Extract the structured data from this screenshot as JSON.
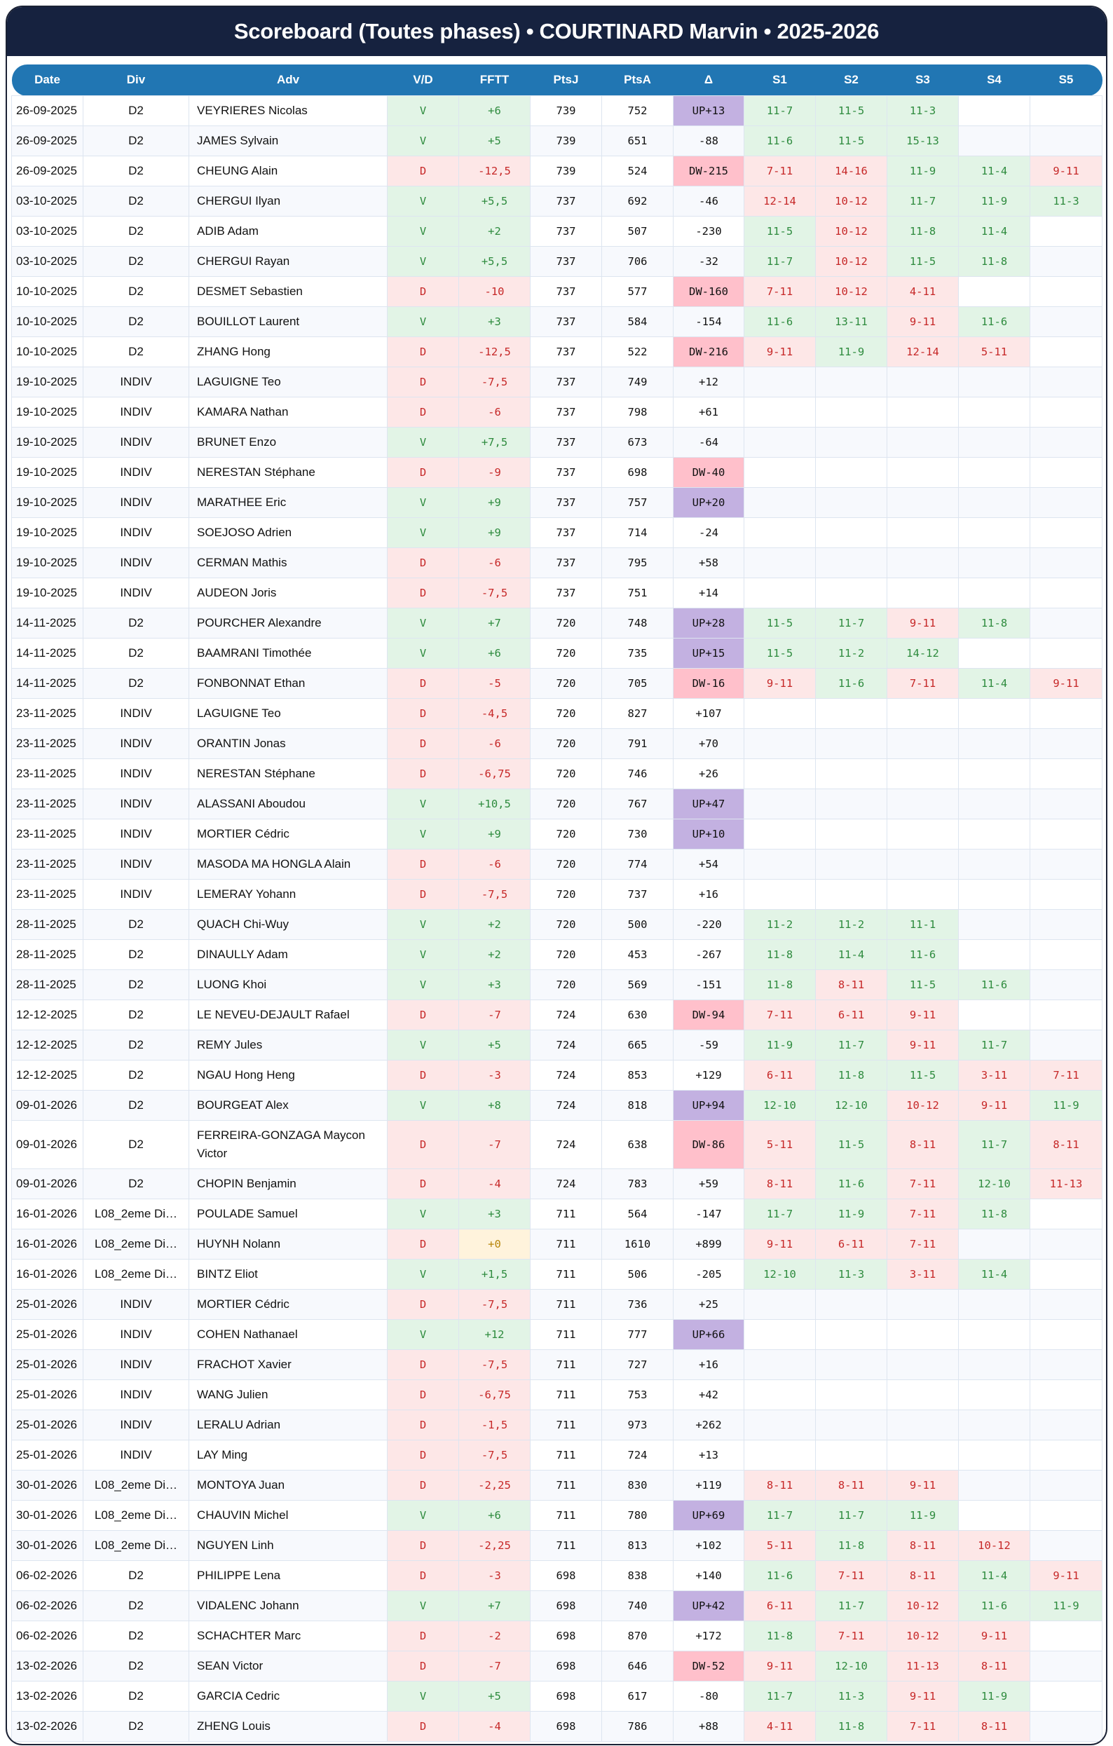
{
  "title": "Scoreboard (Toutes phases) • COURTINARD Marvin • 2025-2026",
  "colors": {
    "title_bg": "#16223f",
    "header_bg": "#2176b3",
    "win_bg": "#e2f4e6",
    "win_text": "#2e8b3e",
    "loss_bg": "#fde7e7",
    "loss_text": "#c62828",
    "up_bg": "#c3b1e1",
    "dw_bg": "#ffc0cb",
    "neutral_bg": "#fff3dc"
  },
  "columns": [
    "Date",
    "Div",
    "Adv",
    "V/D",
    "FFTT",
    "PtsJ",
    "PtsA",
    "Δ",
    "S1",
    "S2",
    "S3",
    "S4",
    "S5"
  ],
  "rows": [
    [
      "26-09-2025",
      "D2",
      "VEYRIERES Nicolas",
      "V",
      "+6",
      "739",
      "752",
      "UP+13",
      "11-7",
      "11-5",
      "11-3",
      "",
      ""
    ],
    [
      "26-09-2025",
      "D2",
      "JAMES Sylvain",
      "V",
      "+5",
      "739",
      "651",
      "-88",
      "11-6",
      "11-5",
      "15-13",
      "",
      ""
    ],
    [
      "26-09-2025",
      "D2",
      "CHEUNG Alain",
      "D",
      "-12,5",
      "739",
      "524",
      "DW-215",
      "7-11",
      "14-16",
      "11-9",
      "11-4",
      "9-11"
    ],
    [
      "03-10-2025",
      "D2",
      "CHERGUI Ilyan",
      "V",
      "+5,5",
      "737",
      "692",
      "-46",
      "12-14",
      "10-12",
      "11-7",
      "11-9",
      "11-3"
    ],
    [
      "03-10-2025",
      "D2",
      "ADIB Adam",
      "V",
      "+2",
      "737",
      "507",
      "-230",
      "11-5",
      "10-12",
      "11-8",
      "11-4",
      ""
    ],
    [
      "03-10-2025",
      "D2",
      "CHERGUI Rayan",
      "V",
      "+5,5",
      "737",
      "706",
      "-32",
      "11-7",
      "10-12",
      "11-5",
      "11-8",
      ""
    ],
    [
      "10-10-2025",
      "D2",
      "DESMET Sebastien",
      "D",
      "-10",
      "737",
      "577",
      "DW-160",
      "7-11",
      "10-12",
      "4-11",
      "",
      ""
    ],
    [
      "10-10-2025",
      "D2",
      "BOUILLOT Laurent",
      "V",
      "+3",
      "737",
      "584",
      "-154",
      "11-6",
      "13-11",
      "9-11",
      "11-6",
      ""
    ],
    [
      "10-10-2025",
      "D2",
      "ZHANG Hong",
      "D",
      "-12,5",
      "737",
      "522",
      "DW-216",
      "9-11",
      "11-9",
      "12-14",
      "5-11",
      ""
    ],
    [
      "19-10-2025",
      "INDIV",
      "LAGUIGNE Teo",
      "D",
      "-7,5",
      "737",
      "749",
      "+12",
      "",
      "",
      "",
      "",
      ""
    ],
    [
      "19-10-2025",
      "INDIV",
      "KAMARA Nathan",
      "D",
      "-6",
      "737",
      "798",
      "+61",
      "",
      "",
      "",
      "",
      ""
    ],
    [
      "19-10-2025",
      "INDIV",
      "BRUNET Enzo",
      "V",
      "+7,5",
      "737",
      "673",
      "-64",
      "",
      "",
      "",
      "",
      ""
    ],
    [
      "19-10-2025",
      "INDIV",
      "NERESTAN Stéphane",
      "D",
      "-9",
      "737",
      "698",
      "DW-40",
      "",
      "",
      "",
      "",
      ""
    ],
    [
      "19-10-2025",
      "INDIV",
      "MARATHEE Eric",
      "V",
      "+9",
      "737",
      "757",
      "UP+20",
      "",
      "",
      "",
      "",
      ""
    ],
    [
      "19-10-2025",
      "INDIV",
      "SOEJOSO Adrien",
      "V",
      "+9",
      "737",
      "714",
      "-24",
      "",
      "",
      "",
      "",
      ""
    ],
    [
      "19-10-2025",
      "INDIV",
      "CERMAN Mathis",
      "D",
      "-6",
      "737",
      "795",
      "+58",
      "",
      "",
      "",
      "",
      ""
    ],
    [
      "19-10-2025",
      "INDIV",
      "AUDEON Joris",
      "D",
      "-7,5",
      "737",
      "751",
      "+14",
      "",
      "",
      "",
      "",
      ""
    ],
    [
      "14-11-2025",
      "D2",
      "POURCHER Alexandre",
      "V",
      "+7",
      "720",
      "748",
      "UP+28",
      "11-5",
      "11-7",
      "9-11",
      "11-8",
      ""
    ],
    [
      "14-11-2025",
      "D2",
      "BAAMRANI Timothée",
      "V",
      "+6",
      "720",
      "735",
      "UP+15",
      "11-5",
      "11-2",
      "14-12",
      "",
      ""
    ],
    [
      "14-11-2025",
      "D2",
      "FONBONNAT Ethan",
      "D",
      "-5",
      "720",
      "705",
      "DW-16",
      "9-11",
      "11-6",
      "7-11",
      "11-4",
      "9-11"
    ],
    [
      "23-11-2025",
      "INDIV",
      "LAGUIGNE Teo",
      "D",
      "-4,5",
      "720",
      "827",
      "+107",
      "",
      "",
      "",
      "",
      ""
    ],
    [
      "23-11-2025",
      "INDIV",
      "ORANTIN Jonas",
      "D",
      "-6",
      "720",
      "791",
      "+70",
      "",
      "",
      "",
      "",
      ""
    ],
    [
      "23-11-2025",
      "INDIV",
      "NERESTAN Stéphane",
      "D",
      "-6,75",
      "720",
      "746",
      "+26",
      "",
      "",
      "",
      "",
      ""
    ],
    [
      "23-11-2025",
      "INDIV",
      "ALASSANI Aboudou",
      "V",
      "+10,5",
      "720",
      "767",
      "UP+47",
      "",
      "",
      "",
      "",
      ""
    ],
    [
      "23-11-2025",
      "INDIV",
      "MORTIER Cédric",
      "V",
      "+9",
      "720",
      "730",
      "UP+10",
      "",
      "",
      "",
      "",
      ""
    ],
    [
      "23-11-2025",
      "INDIV",
      "MASODA MA HONGLA Alain",
      "D",
      "-6",
      "720",
      "774",
      "+54",
      "",
      "",
      "",
      "",
      ""
    ],
    [
      "23-11-2025",
      "INDIV",
      "LEMERAY Yohann",
      "D",
      "-7,5",
      "720",
      "737",
      "+16",
      "",
      "",
      "",
      "",
      ""
    ],
    [
      "28-11-2025",
      "D2",
      "QUACH Chi-Wuy",
      "V",
      "+2",
      "720",
      "500",
      "-220",
      "11-2",
      "11-2",
      "11-1",
      "",
      ""
    ],
    [
      "28-11-2025",
      "D2",
      "DINAULLY Adam",
      "V",
      "+2",
      "720",
      "453",
      "-267",
      "11-8",
      "11-4",
      "11-6",
      "",
      ""
    ],
    [
      "28-11-2025",
      "D2",
      "LUONG Khoi",
      "V",
      "+3",
      "720",
      "569",
      "-151",
      "11-8",
      "8-11",
      "11-5",
      "11-6",
      ""
    ],
    [
      "12-12-2025",
      "D2",
      "LE NEVEU-DEJAULT Rafael",
      "D",
      "-7",
      "724",
      "630",
      "DW-94",
      "7-11",
      "6-11",
      "9-11",
      "",
      ""
    ],
    [
      "12-12-2025",
      "D2",
      "REMY Jules",
      "V",
      "+5",
      "724",
      "665",
      "-59",
      "11-9",
      "11-7",
      "9-11",
      "11-7",
      ""
    ],
    [
      "12-12-2025",
      "D2",
      "NGAU Hong Heng",
      "D",
      "-3",
      "724",
      "853",
      "+129",
      "6-11",
      "11-8",
      "11-5",
      "3-11",
      "7-11"
    ],
    [
      "09-01-2026",
      "D2",
      "BOURGEAT Alex",
      "V",
      "+8",
      "724",
      "818",
      "UP+94",
      "12-10",
      "12-10",
      "10-12",
      "9-11",
      "11-9"
    ],
    [
      "09-01-2026",
      "D2",
      "FERREIRA-GONZAGA Maycon Victor",
      "D",
      "-7",
      "724",
      "638",
      "DW-86",
      "5-11",
      "11-5",
      "8-11",
      "11-7",
      "8-11"
    ],
    [
      "09-01-2026",
      "D2",
      "CHOPIN Benjamin",
      "D",
      "-4",
      "724",
      "783",
      "+59",
      "8-11",
      "11-6",
      "7-11",
      "12-10",
      "11-13"
    ],
    [
      "16-01-2026",
      "L08_2eme Di…",
      "POULADE Samuel",
      "V",
      "+3",
      "711",
      "564",
      "-147",
      "11-7",
      "11-9",
      "7-11",
      "11-8",
      ""
    ],
    [
      "16-01-2026",
      "L08_2eme Di…",
      "HUYNH Nolann",
      "D",
      "+0",
      "711",
      "1610",
      "+899",
      "9-11",
      "6-11",
      "7-11",
      "",
      ""
    ],
    [
      "16-01-2026",
      "L08_2eme Di…",
      "BINTZ Eliot",
      "V",
      "+1,5",
      "711",
      "506",
      "-205",
      "12-10",
      "11-3",
      "3-11",
      "11-4",
      ""
    ],
    [
      "25-01-2026",
      "INDIV",
      "MORTIER Cédric",
      "D",
      "-7,5",
      "711",
      "736",
      "+25",
      "",
      "",
      "",
      "",
      ""
    ],
    [
      "25-01-2026",
      "INDIV",
      "COHEN Nathanael",
      "V",
      "+12",
      "711",
      "777",
      "UP+66",
      "",
      "",
      "",
      "",
      ""
    ],
    [
      "25-01-2026",
      "INDIV",
      "FRACHOT Xavier",
      "D",
      "-7,5",
      "711",
      "727",
      "+16",
      "",
      "",
      "",
      "",
      ""
    ],
    [
      "25-01-2026",
      "INDIV",
      "WANG Julien",
      "D",
      "-6,75",
      "711",
      "753",
      "+42",
      "",
      "",
      "",
      "",
      ""
    ],
    [
      "25-01-2026",
      "INDIV",
      "LERALU Adrian",
      "D",
      "-1,5",
      "711",
      "973",
      "+262",
      "",
      "",
      "",
      "",
      ""
    ],
    [
      "25-01-2026",
      "INDIV",
      "LAY Ming",
      "D",
      "-7,5",
      "711",
      "724",
      "+13",
      "",
      "",
      "",
      "",
      ""
    ],
    [
      "30-01-2026",
      "L08_2eme Di…",
      "MONTOYA Juan",
      "D",
      "-2,25",
      "711",
      "830",
      "+119",
      "8-11",
      "8-11",
      "9-11",
      "",
      ""
    ],
    [
      "30-01-2026",
      "L08_2eme Di…",
      "CHAUVIN Michel",
      "V",
      "+6",
      "711",
      "780",
      "UP+69",
      "11-7",
      "11-7",
      "11-9",
      "",
      ""
    ],
    [
      "30-01-2026",
      "L08_2eme Di…",
      "NGUYEN Linh",
      "D",
      "-2,25",
      "711",
      "813",
      "+102",
      "5-11",
      "11-8",
      "8-11",
      "10-12",
      ""
    ],
    [
      "06-02-2026",
      "D2",
      "PHILIPPE Lena",
      "D",
      "-3",
      "698",
      "838",
      "+140",
      "11-6",
      "7-11",
      "8-11",
      "11-4",
      "9-11"
    ],
    [
      "06-02-2026",
      "D2",
      "VIDALENC Johann",
      "V",
      "+7",
      "698",
      "740",
      "UP+42",
      "6-11",
      "11-7",
      "10-12",
      "11-6",
      "11-9"
    ],
    [
      "06-02-2026",
      "D2",
      "SCHACHTER Marc",
      "D",
      "-2",
      "698",
      "870",
      "+172",
      "11-8",
      "7-11",
      "10-12",
      "9-11",
      ""
    ],
    [
      "13-02-2026",
      "D2",
      "SEAN Victor",
      "D",
      "-7",
      "698",
      "646",
      "DW-52",
      "9-11",
      "12-10",
      "11-13",
      "8-11",
      ""
    ],
    [
      "13-02-2026",
      "D2",
      "GARCIA Cedric",
      "V",
      "+5",
      "698",
      "617",
      "-80",
      "11-7",
      "11-3",
      "9-11",
      "11-9",
      ""
    ],
    [
      "13-02-2026",
      "D2",
      "ZHENG Louis",
      "D",
      "-4",
      "698",
      "786",
      "+88",
      "4-11",
      "11-8",
      "7-11",
      "8-11",
      ""
    ]
  ]
}
